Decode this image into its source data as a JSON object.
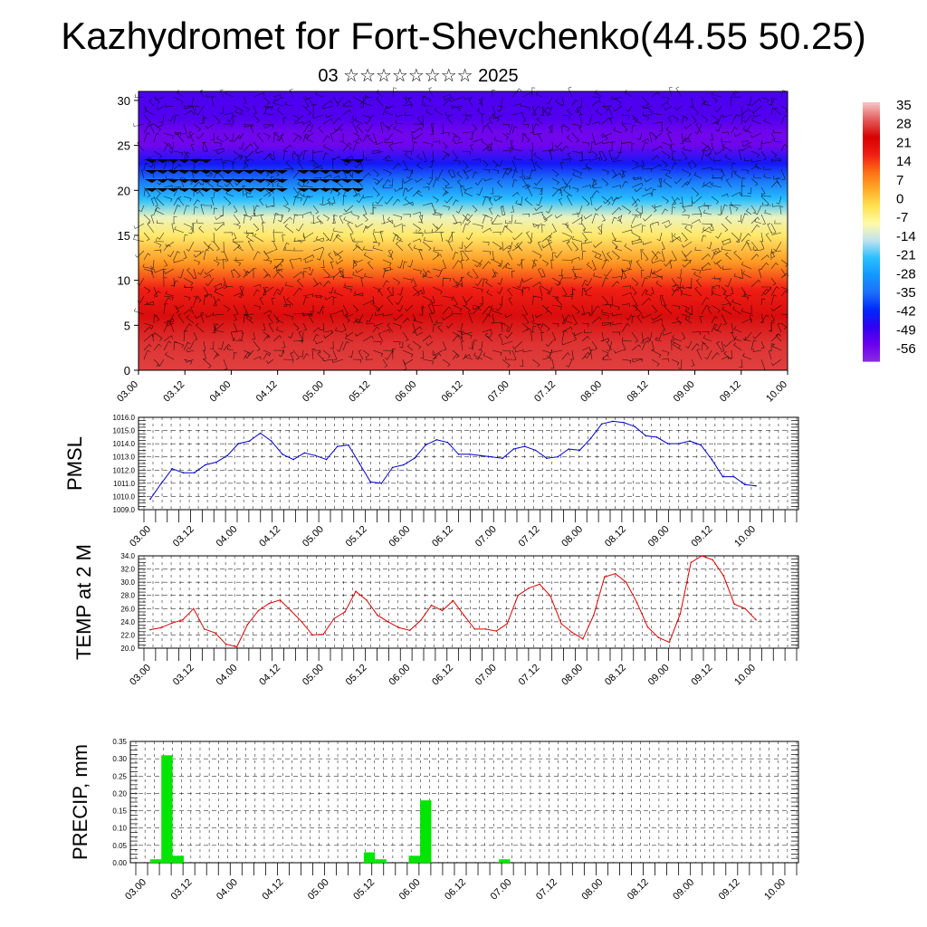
{
  "page": {
    "title": "Kazhydromet for Fort-Shevchenko(44.55 50.25)",
    "subtitle": "03 ☆☆☆☆☆☆☆☆ 2025"
  },
  "colors": {
    "pmsl_line": "#0000cc",
    "temp_line": "#dd0000",
    "precip_bar": "#00e600",
    "grid": "#000000"
  },
  "chart_data": [
    {
      "id": "upper-field",
      "type": "heatmap",
      "title": "Kazhydromet for Fort-Shevchenko(44.55 50.25)",
      "subtitle": "03 ☆☆☆☆☆☆☆☆ 2025",
      "x_ticks": [
        "03.00",
        "03.12",
        "04.00",
        "04.12",
        "05.00",
        "05.12",
        "06.00",
        "06.12",
        "07.00",
        "07.12",
        "08.00",
        "08.12",
        "09.00",
        "09.12",
        "10.00"
      ],
      "y_ticks": [
        "0",
        "5",
        "10",
        "15",
        "20",
        "25",
        "30"
      ],
      "ylim": [
        0,
        31
      ],
      "colorbar": {
        "labels": [
          "35",
          "28",
          "21",
          "14",
          "7",
          "0",
          "-7",
          "-14",
          "-21",
          "-28",
          "-35",
          "-42",
          "-49",
          "-56"
        ],
        "range": [
          -63,
          42
        ]
      },
      "temperature_profile": [
        {
          "height": 0,
          "value": 33
        },
        {
          "height": 3,
          "value": 32
        },
        {
          "height": 6,
          "value": 29
        },
        {
          "height": 9,
          "value": 21
        },
        {
          "height": 12,
          "value": 9
        },
        {
          "height": 15,
          "value": -2
        },
        {
          "height": 17,
          "value": -9
        },
        {
          "height": 19,
          "value": -21
        },
        {
          "height": 21,
          "value": -33
        },
        {
          "height": 23,
          "value": -45
        },
        {
          "height": 25,
          "value": -57
        },
        {
          "height": 26.5,
          "value": -57
        },
        {
          "height": 28,
          "value": -53
        },
        {
          "height": 31,
          "value": -52
        }
      ],
      "wind_barbs": true
    },
    {
      "id": "pmsl",
      "type": "line",
      "ylabel": "PMSL",
      "ylim": [
        1009.0,
        1016.0
      ],
      "y_ticks": [
        "1009.0",
        "1010.0",
        "1011.0",
        "1012.0",
        "1013.0",
        "1014.0",
        "1015.0",
        "1016.0"
      ],
      "x_ticks": [
        "03.00",
        "03.12",
        "04.00",
        "04.12",
        "05.00",
        "05.12",
        "06.00",
        "06.12",
        "07.00",
        "07.12",
        "08.00",
        "08.12",
        "09.00",
        "09.12",
        "10.00"
      ],
      "grid": true,
      "series": [
        {
          "values": [
            1009.8,
            1011.0,
            1012.1,
            1011.8,
            1011.8,
            1012.4,
            1012.6,
            1013.1,
            1014.0,
            1014.2,
            1014.8,
            1014.2,
            1013.2,
            1012.8,
            1013.3,
            1013.1,
            1012.8,
            1013.8,
            1013.9,
            1012.5,
            1011.1,
            1011.0,
            1012.2,
            1012.4,
            1012.9,
            1013.9,
            1014.3,
            1014.1,
            1013.2,
            1013.2,
            1013.1,
            1013.0,
            1012.9,
            1013.6,
            1013.8,
            1013.5,
            1012.9,
            1013.0,
            1013.6,
            1013.5,
            1014.4,
            1015.5,
            1015.7,
            1015.6,
            1015.3,
            1014.6,
            1014.5,
            1014.0,
            1014.0,
            1014.2,
            1013.9,
            1012.8,
            1011.5,
            1011.5,
            1010.9,
            1010.8
          ]
        }
      ]
    },
    {
      "id": "temp2m",
      "type": "line",
      "ylabel": "TEMP at 2 M",
      "ylim": [
        20.0,
        34.0
      ],
      "y_ticks": [
        "20.0",
        "22.0",
        "24.0",
        "26.0",
        "28.0",
        "30.0",
        "32.0",
        "34.0"
      ],
      "x_ticks": [
        "03.00",
        "03.12",
        "04.00",
        "04.12",
        "05.00",
        "05.12",
        "06.00",
        "06.12",
        "07.00",
        "07.12",
        "08.00",
        "08.12",
        "09.00",
        "09.12",
        "10.00"
      ],
      "grid": true,
      "series": [
        {
          "values": [
            22.8,
            23.1,
            23.8,
            24.3,
            26.0,
            22.9,
            22.3,
            20.6,
            20.2,
            23.6,
            25.7,
            26.8,
            27.3,
            25.7,
            24.0,
            22.0,
            22.1,
            24.5,
            25.5,
            28.6,
            27.3,
            25.0,
            24.0,
            23.1,
            22.7,
            24.2,
            26.5,
            25.7,
            27.2,
            25.0,
            22.9,
            22.9,
            22.6,
            23.7,
            28.0,
            29.1,
            29.7,
            27.9,
            23.7,
            22.4,
            21.4,
            25.0,
            30.8,
            31.3,
            30.0,
            26.9,
            23.2,
            21.6,
            20.9,
            25.2,
            33.0,
            34.0,
            33.4,
            31.0,
            26.7,
            26.0,
            24.3
          ]
        }
      ]
    },
    {
      "id": "precip",
      "type": "bar",
      "ylabel": "PRECIP, mm",
      "ylim": [
        0.0,
        0.35
      ],
      "y_ticks": [
        "0.00",
        "0.05",
        "0.10",
        "0.15",
        "0.20",
        "0.25",
        "0.30",
        "0.35"
      ],
      "x_ticks": [
        "03.00",
        "03.12",
        "04.00",
        "04.12",
        "05.00",
        "05.12",
        "06.00",
        "06.12",
        "07.00",
        "07.12",
        "08.00",
        "08.12",
        "09.00",
        "09.12",
        "10.00"
      ],
      "grid": true,
      "series": [
        {
          "values": [
            0.01,
            0.31,
            0.02,
            0,
            0,
            0,
            0,
            0,
            0,
            0,
            0,
            0,
            0,
            0,
            0,
            0,
            0,
            0,
            0,
            0.03,
            0.01,
            0,
            0,
            0.02,
            0.18,
            0,
            0,
            0,
            0,
            0,
            0,
            0.01,
            0,
            0,
            0,
            0,
            0,
            0,
            0,
            0,
            0,
            0,
            0,
            0,
            0,
            0,
            0,
            0,
            0,
            0,
            0,
            0,
            0,
            0,
            0,
            0
          ]
        }
      ]
    }
  ]
}
